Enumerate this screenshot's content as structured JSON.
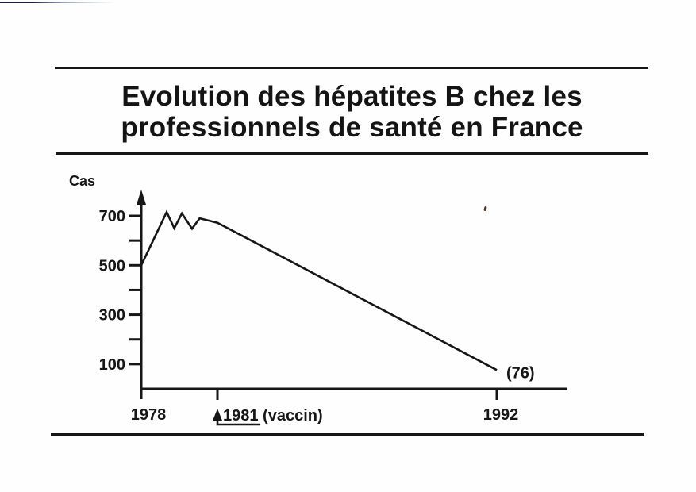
{
  "page": {
    "background": "#fefefe",
    "ink": "#161616"
  },
  "title": {
    "line1": "Evolution des hépatites B chez les",
    "line2": "professionnels de santé en France"
  },
  "chart_data": {
    "type": "line",
    "title": "Evolution des hépatites B chez les professionnels de santé en France",
    "ylabel": "Cas",
    "xlabel": "",
    "grid": false,
    "legend": "none",
    "ylim": [
      0,
      790
    ],
    "x_range": [
      1978,
      1994
    ],
    "y_ticks": {
      "major": [
        {
          "value": 700,
          "label": "700"
        },
        {
          "value": 500,
          "label": "500"
        },
        {
          "value": 300,
          "label": "300"
        },
        {
          "value": 100,
          "label": "100"
        }
      ],
      "minor": [
        600,
        400,
        200
      ]
    },
    "x_ticks": [
      {
        "year": 1978,
        "label": "1978",
        "tick_mark": false,
        "annotation_arrow": false
      },
      {
        "year": 1981,
        "label": "1981 (vaccin)",
        "tick_mark": true,
        "annotation_arrow": true
      },
      {
        "year": 1992,
        "label": "1992",
        "tick_mark": true,
        "annotation_arrow": false
      }
    ],
    "series": [
      {
        "points": [
          [
            1978,
            500
          ],
          [
            1979,
            715
          ],
          [
            1979.3,
            650
          ],
          [
            1979.6,
            710
          ],
          [
            1980,
            648
          ],
          [
            1980.3,
            690
          ],
          [
            1981,
            672
          ],
          [
            1992,
            76
          ]
        ]
      }
    ],
    "end_label": "(76)"
  }
}
